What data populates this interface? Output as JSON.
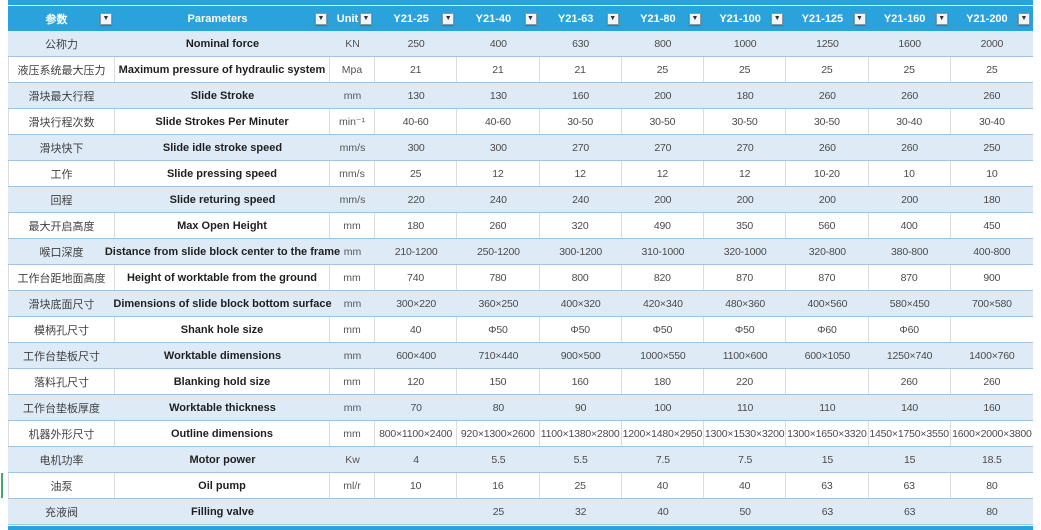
{
  "colors": {
    "header_blue": "#2AA2DB",
    "band_blue": "#DEEBF7",
    "row_line_blue": "#9DC3E6",
    "green_mark": "#3FA968"
  },
  "icons": {
    "filter_dropdown": "▼"
  },
  "table": {
    "header": {
      "param_cn": "参数",
      "param_en": "Parameters",
      "unit": "Unit",
      "models": [
        "Y21-25",
        "Y21-40",
        "Y21-63",
        "Y21-80",
        "Y21-100",
        "Y21-125",
        "Y21-160",
        "Y21-200"
      ]
    },
    "rows": [
      {
        "cn": "公称力",
        "en": "Nominal force",
        "unit": "KN",
        "values": [
          "250",
          "400",
          "630",
          "800",
          "1000",
          "1250",
          "1600",
          "2000"
        ]
      },
      {
        "cn": "液压系统最大压力",
        "en": "Maximum pressure of hydraulic system",
        "unit": "Mpa",
        "values": [
          "21",
          "21",
          "21",
          "25",
          "25",
          "25",
          "25",
          "25"
        ]
      },
      {
        "cn": "滑块最大行程",
        "en": "Slide Stroke",
        "unit": "mm",
        "values": [
          "130",
          "130",
          "160",
          "200",
          "180",
          "260",
          "260",
          "260"
        ]
      },
      {
        "cn": "滑块行程次数",
        "en": "Slide Strokes Per Minuter",
        "unit": "min⁻¹",
        "values": [
          "40-60",
          "40-60",
          "30-50",
          "30-50",
          "30-50",
          "30-50",
          "30-40",
          "30-40"
        ]
      },
      {
        "cn": "滑块快下",
        "en": "Slide idle stroke speed",
        "unit": "mm/s",
        "values": [
          "300",
          "300",
          "270",
          "270",
          "270",
          "260",
          "260",
          "250"
        ]
      },
      {
        "cn": "工作",
        "en": "Slide pressing speed",
        "unit": "mm/s",
        "values": [
          "25",
          "12",
          "12",
          "12",
          "12",
          "10-20",
          "10",
          "10"
        ]
      },
      {
        "cn": "回程",
        "en": "Slide returing speed",
        "unit": "mm/s",
        "values": [
          "220",
          "240",
          "240",
          "200",
          "200",
          "200",
          "200",
          "180"
        ]
      },
      {
        "cn": "最大开启高度",
        "en": "Max Open Height",
        "unit": "mm",
        "values": [
          "180",
          "260",
          "320",
          "490",
          "350",
          "560",
          "400",
          "450"
        ]
      },
      {
        "cn": "喉口深度",
        "en": "Distance from slide block center to the frame",
        "unit": "mm",
        "values": [
          "210-1200",
          "250-1200",
          "300-1200",
          "310-1000",
          "320-1000",
          "320-800",
          "380-800",
          "400-800"
        ]
      },
      {
        "cn": "工作台距地面高度",
        "en": "Height of worktable from the ground",
        "unit": "mm",
        "values": [
          "740",
          "780",
          "800",
          "820",
          "870",
          "870",
          "870",
          "900"
        ]
      },
      {
        "cn": "滑块底面尺寸",
        "en": "Dimensions of slide block bottom surface",
        "unit": "mm",
        "values": [
          "300×220",
          "360×250",
          "400×320",
          "420×340",
          "480×360",
          "400×560",
          "580×450",
          "700×580"
        ]
      },
      {
        "cn": "模柄孔尺寸",
        "en": "Shank hole size",
        "unit": "mm",
        "values": [
          "40",
          "Φ50",
          "Φ50",
          "Φ50",
          "Φ50",
          "Φ60",
          "Φ60",
          ""
        ]
      },
      {
        "cn": "工作台垫板尺寸",
        "en": "Worktable dimensions",
        "unit": "mm",
        "values": [
          "600×400",
          "710×440",
          "900×500",
          "1000×550",
          "1100×600",
          "600×1050",
          "1250×740",
          "1400×760"
        ]
      },
      {
        "cn": "落料孔尺寸",
        "en": "Blanking hold size",
        "unit": "mm",
        "values": [
          "120",
          "150",
          "160",
          "180",
          "220",
          "",
          "260",
          "260"
        ]
      },
      {
        "cn": "工作台垫板厚度",
        "en": "Worktable thickness",
        "unit": "mm",
        "values": [
          "70",
          "80",
          "90",
          "100",
          "110",
          "110",
          "140",
          "160"
        ]
      },
      {
        "cn": "机器外形尺寸",
        "en": "Outline dimensions",
        "unit": "mm",
        "values": [
          "800×1100×2400",
          "920×1300×2600",
          "1100×1380×2800",
          "1200×1480×2950",
          "1300×1530×3200",
          "1300×1650×3320",
          "1450×1750×3550",
          "1600×2000×3800"
        ]
      },
      {
        "cn": "电机功率",
        "en": "Motor power",
        "unit": "Kw",
        "values": [
          "4",
          "5.5",
          "5.5",
          "7.5",
          "7.5",
          "15",
          "15",
          "18.5"
        ]
      },
      {
        "cn": "油泵",
        "en": "Oil pump",
        "unit": "ml/r",
        "values": [
          "10",
          "16",
          "25",
          "40",
          "40",
          "63",
          "63",
          "80"
        ],
        "left_mark": true
      },
      {
        "cn": "充液阀",
        "en": "Filling valve",
        "unit": "",
        "values": [
          "",
          "25",
          "32",
          "40",
          "50",
          "63",
          "63",
          "80"
        ]
      }
    ]
  }
}
